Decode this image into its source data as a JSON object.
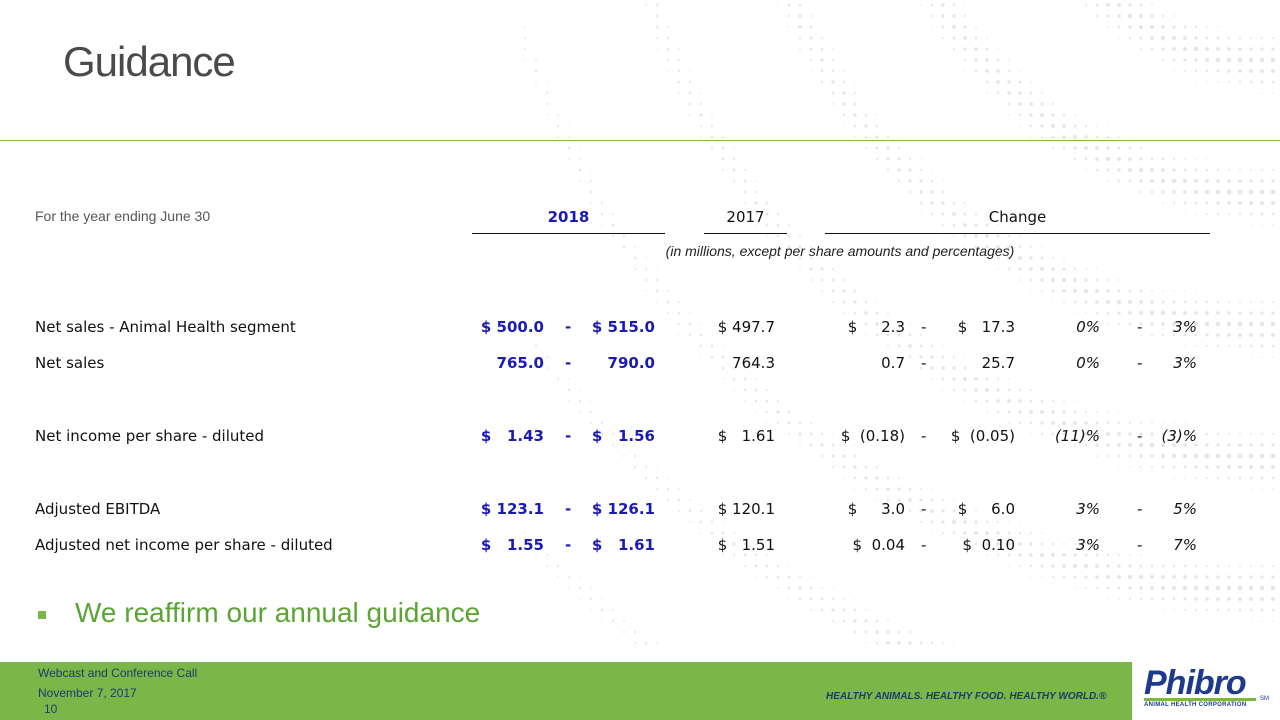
{
  "title": "Guidance",
  "header": {
    "for_year": "For the year ending June 30",
    "col_2018": "2018",
    "col_2017": "2017",
    "col_change": "Change",
    "subnote": "(in millions, except per share amounts and percentages)"
  },
  "rows": [
    {
      "label": "Net sales - Animal Health segment",
      "lo": "$ 500.0",
      "dash1": "-",
      "hi": "$ 515.0",
      "prior": "$ 497.7",
      "chg_lo": "$     2.3",
      "dash2": "-",
      "chg_hi": "$   17.3",
      "pct_lo": "0%",
      "dash3": "-",
      "pct_hi": "3%"
    },
    {
      "label": "Net sales",
      "lo": "765.0",
      "dash1": "-",
      "hi": "790.0",
      "prior": "764.3",
      "chg_lo": "0.7",
      "dash2": "-",
      "chg_hi": "25.7",
      "pct_lo": "0%",
      "dash3": "-",
      "pct_hi": "3%"
    },
    {
      "label": "Net income per share - diluted",
      "lo": "$   1.43",
      "dash1": "-",
      "hi": "$   1.56",
      "prior": "$   1.61",
      "chg_lo": "$  (0.18)",
      "dash2": "-",
      "chg_hi": "$  (0.05)",
      "pct_lo": "(11)%",
      "dash3": "-",
      "pct_hi": "(3)%"
    },
    {
      "label": "Adjusted EBITDA",
      "lo": "$ 123.1",
      "dash1": "-",
      "hi": "$ 126.1",
      "prior": "$ 120.1",
      "chg_lo": "$     3.0",
      "dash2": "-",
      "chg_hi": "$     6.0",
      "pct_lo": "3%",
      "dash3": "-",
      "pct_hi": "5%"
    },
    {
      "label": "Adjusted net income per share - diluted",
      "lo": "$   1.55",
      "dash1": "-",
      "hi": "$   1.61",
      "prior": "$   1.51",
      "chg_lo": "$  0.04",
      "dash2": "-",
      "chg_hi": "$  0.10",
      "pct_lo": "3%",
      "dash3": "-",
      "pct_hi": "7%"
    }
  ],
  "bullet": "We reaffirm our annual guidance",
  "footer": {
    "line1": "Webcast and Conference Call",
    "line2": "November 7, 2017",
    "page": "10",
    "tagline": "HEALTHY ANIMALS. HEALTHY FOOD. HEALTHY WORLD.®",
    "logo": "Phibro",
    "logo_sub": "ANIMAL HEALTH CORPORATION",
    "logo_tm": "SM"
  },
  "colors": {
    "accent_green": "#7ab648",
    "guidance_blue": "#1a1ab4",
    "title_gray": "#4a4a4a",
    "brand_navy": "#1e3a8e"
  }
}
